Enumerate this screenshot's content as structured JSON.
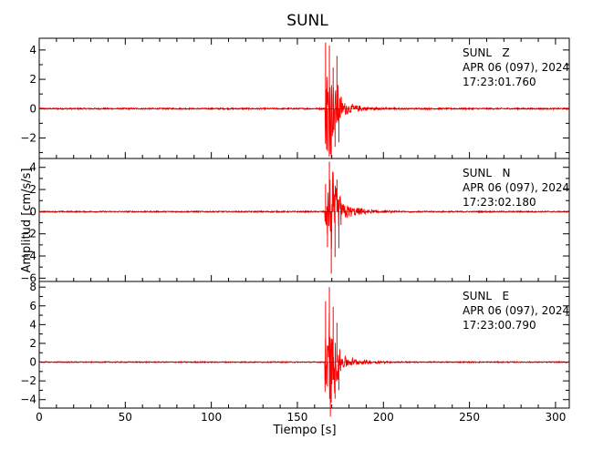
{
  "chart_data": {
    "type": "line",
    "title": "SUNL",
    "xlabel": "Tiempo [s]",
    "ylabel": "Amplitud [cm/s/s]",
    "xlim": [
      0,
      308
    ],
    "x_ticks": [
      0,
      50,
      100,
      150,
      200,
      250,
      300
    ],
    "line_color": "#ff0000",
    "zero_line_color": "#000000",
    "panels": [
      {
        "component_label": "SUNL   Z",
        "date_label": "APR 06 (097), 2024",
        "time_label": "17:23:01.760",
        "ylim": [
          -3.4,
          4.8
        ],
        "y_ticks": [
          -2,
          0,
          2,
          4
        ],
        "y_tick_labels": [
          "−2",
          "0",
          "2",
          "4"
        ],
        "series": {
          "onset_s": 166,
          "noise_level": 0.05,
          "peak_values": [
            4.5,
            -2.9,
            4.3,
            -3.3,
            2.8,
            -2.6,
            3.6,
            -2.3
          ],
          "decay_s": 10,
          "end_s": 216
        }
      },
      {
        "component_label": "SUNL   N",
        "date_label": "APR 06 (097), 2024",
        "time_label": "17:23:02.180",
        "ylim": [
          -6.3,
          4.8
        ],
        "y_ticks": [
          -6,
          -4,
          -2,
          0,
          2,
          4
        ],
        "y_tick_labels": [
          "−6",
          "−4",
          "−2",
          "0",
          "2",
          "4"
        ],
        "series": {
          "onset_s": 166,
          "noise_level": 0.06,
          "peak_values": [
            2.5,
            -3.2,
            4.5,
            -5.6,
            3.5,
            -4.1,
            2.9,
            -3.3
          ],
          "decay_s": 11,
          "end_s": 220
        }
      },
      {
        "component_label": "SUNL   E",
        "date_label": "APR 06 (097), 2024",
        "time_label": "17:23:00.790",
        "ylim": [
          -4.9,
          8.6
        ],
        "y_ticks": [
          -4,
          -2,
          0,
          2,
          4,
          6,
          8
        ],
        "y_tick_labels": [
          "−4",
          "−2",
          "0",
          "2",
          "4",
          "6",
          "8"
        ],
        "series": {
          "onset_s": 166,
          "noise_level": 0.06,
          "peak_values": [
            6.5,
            -2.6,
            8.0,
            -4.3,
            5.9,
            -3.9,
            4.2,
            -3.0
          ],
          "decay_s": 11,
          "end_s": 220
        }
      }
    ]
  }
}
